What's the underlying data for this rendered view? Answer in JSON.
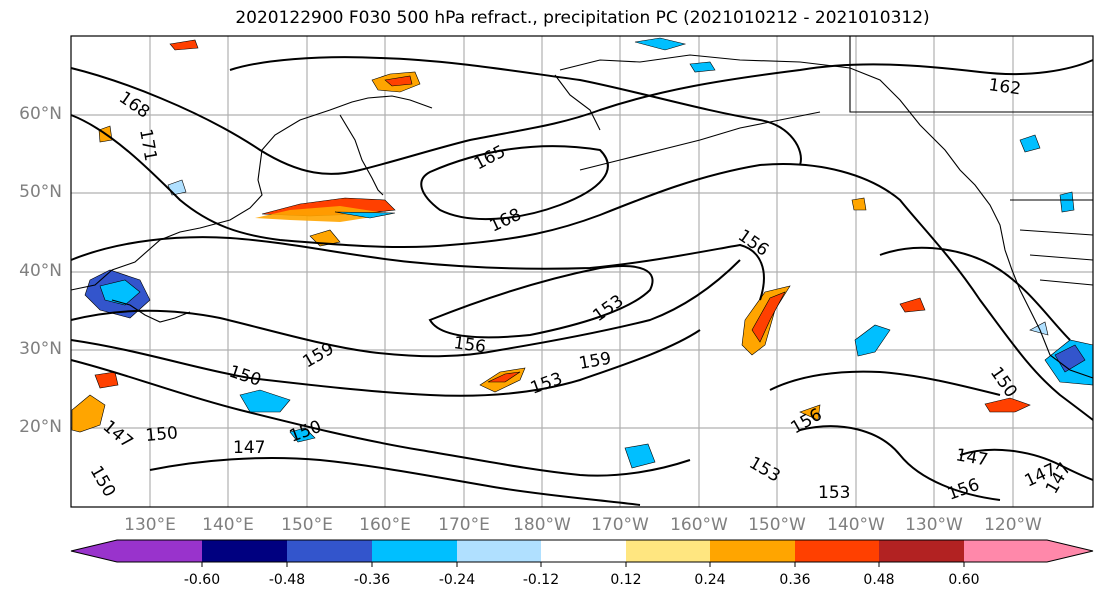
{
  "title": "2020122900 F030 500 hPa refract., precipitation PC (2021010212 - 2021010312)",
  "lat_labels": [
    "60°N",
    "50°N",
    "40°N",
    "30°N",
    "20°N"
  ],
  "lon_labels": [
    "130°E",
    "140°E",
    "150°E",
    "160°E",
    "170°E",
    "180°W",
    "170°W",
    "160°W",
    "150°W",
    "140°W",
    "130°W",
    "120°W"
  ],
  "contour_labels": [
    "168",
    "171",
    "165",
    "168",
    "162",
    "156",
    "153",
    "156",
    "159",
    "159",
    "150",
    "153",
    "150",
    "147",
    "150",
    "147",
    "153",
    "156",
    "153",
    "150",
    "147",
    "156",
    "147",
    "147",
    "150"
  ],
  "colorbar": {
    "ticks": [
      "-0.60",
      "-0.48",
      "-0.36",
      "-0.24",
      "-0.12",
      "0.12",
      "0.24",
      "0.36",
      "0.48",
      "0.60"
    ],
    "colors": [
      "#9933cc",
      "#000080",
      "#3355cc",
      "#00bfff",
      "#b0e0ff",
      "#ffffff",
      "#ffe680",
      "#ffa500",
      "#ff4000",
      "#b22222",
      "#ff88aa"
    ]
  },
  "palette": {
    "grid": "#b0b0b0",
    "coast": "#000000",
    "contour": "#000000",
    "tick_label": "#7f7f7f"
  }
}
